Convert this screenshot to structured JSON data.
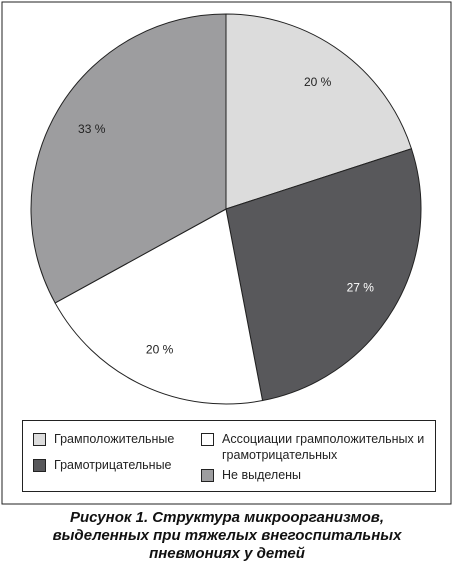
{
  "chart_data": {
    "type": "pie",
    "title": "Рисунок 1. Структура микроорганизмов, выделенных при тяжелых внегоспитальных пневмониях у детей",
    "categories": [
      "Грамположительные",
      "Грамотрицательные",
      "Ассоциации грамположительных и грамотрицательных",
      "Не выделены"
    ],
    "values": [
      20,
      27,
      20,
      33
    ],
    "value_labels": [
      "20 %",
      "27 %",
      "20 %",
      "33 %"
    ],
    "colors": [
      "#dcdcdc",
      "#58585b",
      "#ffffff",
      "#9d9d9f"
    ]
  }
}
